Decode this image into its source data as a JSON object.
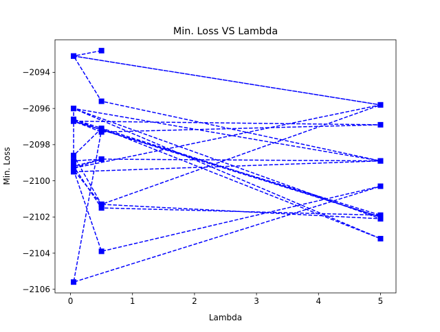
{
  "chart_data": {
    "type": "line",
    "title": "Min. Loss VS Lambda",
    "xlabel": "Lambda",
    "ylabel": "Min. Loss",
    "xlim": [
      -0.25,
      5.25
    ],
    "ylim": [
      -2106.2,
      -2092.2
    ],
    "xticks": [
      0,
      1,
      2,
      3,
      4,
      5
    ],
    "yticks": [
      -2106,
      -2104,
      -2102,
      -2100,
      -2098,
      -2096,
      -2094
    ],
    "grid": false,
    "legend": "none",
    "line_style": "dashed",
    "marker": "square",
    "color": "#0000ff",
    "series": [
      {
        "x": [
          0.5,
          0.05,
          5,
          0.05,
          0.5,
          5,
          0.05,
          5,
          0.5,
          0.05,
          0.5,
          5,
          0.05,
          0.5,
          0.05,
          5,
          0.05,
          0.5,
          5,
          0.05,
          5,
          0.5,
          0.05,
          0.5,
          5,
          0.05,
          0.05,
          5,
          0.5,
          0.05,
          0.5,
          5,
          0.05,
          0.5,
          0.05
        ],
        "y": [
          -2092.8,
          -2093.1,
          -2095.8,
          -2093.1,
          -2095.6,
          -2098.9,
          -2096.0,
          -2102.1,
          -2101.3,
          -2099.4,
          -2103.9,
          -2100.3,
          -2105.6,
          -2097.2,
          -2096.6,
          -2102.0,
          -2096.7,
          -2097.3,
          -2096.9,
          -2096.7,
          -2101.9,
          -2101.5,
          -2099.2,
          -2098.8,
          -2098.9,
          -2099.5,
          -2096.0,
          -2103.2,
          -2097.1,
          -2098.6,
          -2101.3,
          -2095.8,
          -2099.3,
          -2098.8,
          -2098.9
        ]
      }
    ]
  }
}
